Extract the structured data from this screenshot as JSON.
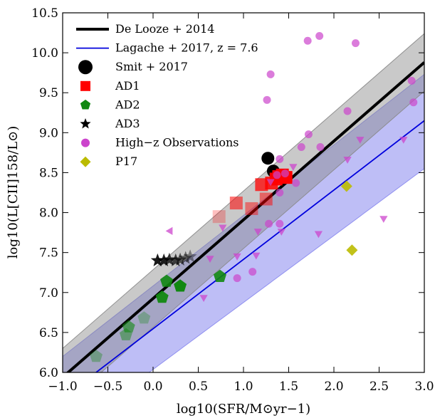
{
  "chart_data": {
    "type": "scatter",
    "xlabel": "log10(SFR/M⊙yr−1)",
    "ylabel": "log10(L[CII]158/L⊙)",
    "xlim": [
      -1.0,
      3.0
    ],
    "ylim": [
      6.0,
      10.5
    ],
    "xticks": [
      -1.0,
      -0.5,
      0.0,
      0.5,
      1.0,
      1.5,
      2.0,
      2.5,
      3.0
    ],
    "yticks": [
      6.0,
      6.5,
      7.0,
      7.5,
      8.0,
      8.5,
      9.0,
      9.5,
      10.0,
      10.5
    ],
    "xtick_labels": [
      "−1.0",
      "−0.5",
      "0.0",
      "0.5",
      "1.0",
      "1.5",
      "2.0",
      "2.5",
      "3.0"
    ],
    "ytick_labels": [
      "6.0",
      "6.5",
      "7.0",
      "7.5",
      "8.0",
      "8.5",
      "9.0",
      "9.5",
      "10.0",
      "10.5"
    ],
    "grid": false,
    "legend_position": "top-left",
    "legend": [
      {
        "label": "De Looze + 2014",
        "marker": "line",
        "color": "#000000"
      },
      {
        "label": "Lagache + 2017, z = 7.6",
        "marker": "line",
        "color": "#0000dd"
      },
      {
        "label": "Smit + 2017",
        "marker": "circle",
        "color": "#000000"
      },
      {
        "label": "AD1",
        "marker": "square",
        "color": "#ff0000"
      },
      {
        "label": "AD2",
        "marker": "pentagon",
        "color": "#118811"
      },
      {
        "label": "AD3",
        "marker": "star",
        "color": "#000000"
      },
      {
        "label": "High−z Observations",
        "marker": "circle",
        "color": "#cc44cc"
      },
      {
        "label": "P17",
        "marker": "diamond",
        "color": "#bbbb00"
      }
    ],
    "relations": [
      {
        "name": "De Looze + 2014",
        "color": "#000000",
        "line_points": [
          [
            -1.0,
            5.94
          ],
          [
            3.0,
            9.88
          ]
        ],
        "band": {
          "color": "#888888",
          "upper": [
            [
              -1.0,
              6.3
            ],
            [
              3.0,
              10.24
            ]
          ],
          "lower": [
            [
              -1.0,
              5.58
            ],
            [
              3.0,
              9.52
            ]
          ]
        }
      },
      {
        "name": "Lagache + 2017, z = 7.6",
        "color": "#0000dd",
        "line_points": [
          [
            -0.63,
            6.0
          ],
          [
            3.0,
            9.15
          ]
        ],
        "band": {
          "color": "#8888ee",
          "upper": [
            [
              -1.0,
              6.2
            ],
            [
              3.0,
              9.73
            ]
          ],
          "lower": [
            [
              -1.0,
              5.2
            ],
            [
              3.0,
              8.55
            ]
          ]
        }
      }
    ],
    "series": [
      {
        "name": "Smit + 2017",
        "marker": "circle",
        "color": "#000000",
        "points": [
          [
            1.27,
            8.68
          ],
          [
            1.33,
            8.52
          ]
        ]
      },
      {
        "name": "AD1",
        "marker": "square",
        "color": "#ff0000",
        "points": [
          [
            0.73,
            7.95
          ],
          [
            0.92,
            8.12
          ],
          [
            1.09,
            8.05
          ],
          [
            1.2,
            8.35
          ],
          [
            1.25,
            8.17
          ],
          [
            1.31,
            8.37
          ],
          [
            1.36,
            8.42
          ],
          [
            1.39,
            8.45
          ],
          [
            1.43,
            8.47
          ],
          [
            1.47,
            8.44
          ]
        ]
      },
      {
        "name": "AD2",
        "marker": "pentagon",
        "color": "#118811",
        "points": [
          [
            -0.63,
            6.2
          ],
          [
            -0.3,
            6.47
          ],
          [
            -0.27,
            6.57
          ],
          [
            -0.1,
            6.68
          ],
          [
            0.1,
            6.94
          ],
          [
            0.15,
            7.14
          ],
          [
            0.3,
            7.08
          ],
          [
            0.74,
            7.2
          ]
        ]
      },
      {
        "name": "AD3",
        "marker": "star",
        "color": "#000000",
        "points": [
          [
            0.05,
            7.4
          ],
          [
            0.12,
            7.4
          ],
          [
            0.18,
            7.41
          ],
          [
            0.25,
            7.4
          ],
          [
            0.3,
            7.41
          ],
          [
            0.36,
            7.43
          ],
          [
            0.41,
            7.45
          ]
        ]
      },
      {
        "name": "High−z Observations",
        "marker": "circle",
        "color": "#cc44cc",
        "points": [
          [
            1.71,
            10.15
          ],
          [
            1.84,
            10.21
          ],
          [
            2.24,
            10.12
          ],
          [
            1.3,
            9.73
          ],
          [
            1.26,
            9.41
          ],
          [
            2.15,
            9.27
          ],
          [
            2.86,
            9.65
          ],
          [
            2.88,
            9.38
          ],
          [
            1.72,
            8.98
          ],
          [
            1.64,
            8.82
          ],
          [
            1.85,
            8.82
          ],
          [
            1.4,
            8.67
          ],
          [
            1.58,
            8.37
          ],
          [
            1.4,
            8.25
          ],
          [
            1.37,
            8.47
          ],
          [
            1.46,
            8.49
          ],
          [
            1.28,
            7.86
          ],
          [
            1.4,
            7.86
          ],
          [
            1.1,
            7.26
          ],
          [
            0.93,
            7.18
          ]
        ]
      },
      {
        "name": "upper limits",
        "marker": "triangle-down",
        "color": "#cc44cc",
        "points": [
          [
            2.29,
            8.92
          ],
          [
            2.77,
            8.92
          ],
          [
            2.15,
            8.67
          ],
          [
            1.55,
            8.58
          ],
          [
            1.3,
            8.39
          ],
          [
            0.77,
            7.82
          ],
          [
            1.16,
            7.77
          ],
          [
            1.42,
            7.77
          ],
          [
            1.83,
            7.74
          ],
          [
            0.93,
            7.46
          ],
          [
            1.14,
            7.47
          ],
          [
            0.63,
            7.43
          ],
          [
            2.55,
            7.93
          ],
          [
            0.56,
            6.94
          ]
        ]
      },
      {
        "name": "left limit",
        "marker": "triangle-left",
        "color": "#cc44cc",
        "points": [
          [
            0.19,
            7.77
          ]
        ]
      },
      {
        "name": "P17",
        "marker": "diamond",
        "color": "#bbbb00",
        "points": [
          [
            2.14,
            8.33
          ],
          [
            2.2,
            7.53
          ]
        ]
      }
    ]
  }
}
